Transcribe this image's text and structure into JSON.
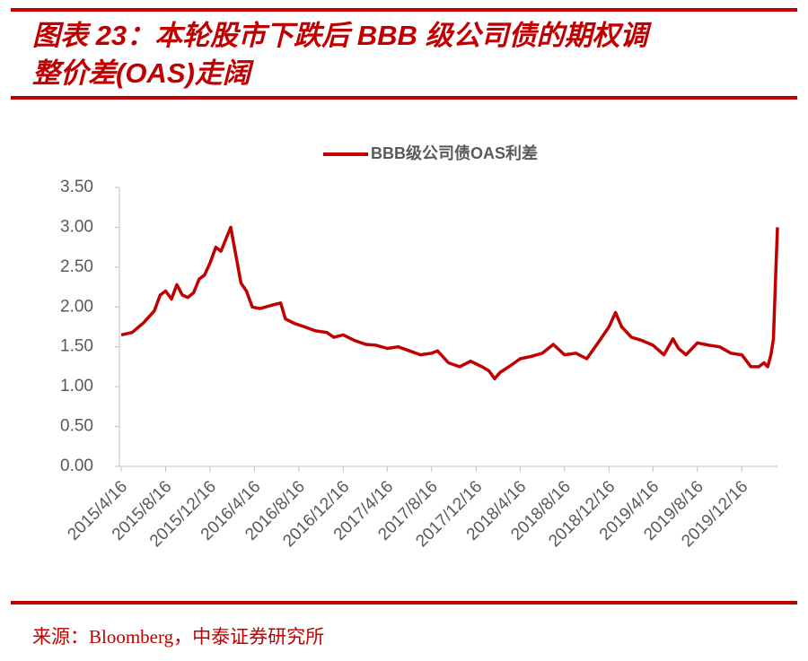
{
  "chart_data": {
    "type": "line",
    "title": [
      "图表 23：本轮股市下跌后 BBB 级公司债的期权调",
      "整价差(OAS)走阔"
    ],
    "source": "来源：Bloomberg，中泰证券研究所",
    "x": [
      "2015/4/16",
      "2015/5/16",
      "2015/6/16",
      "2015/7/16",
      "2015/8/1",
      "2015/8/16",
      "2015/9/1",
      "2015/9/16",
      "2015/10/1",
      "2015/10/16",
      "2015/11/1",
      "2015/11/16",
      "2015/12/1",
      "2015/12/16",
      "2016/1/1",
      "2016/1/15",
      "2016/2/11",
      "2016/2/25",
      "2016/3/10",
      "2016/3/25",
      "2016/4/10",
      "2016/5/1",
      "2016/6/1",
      "2016/6/27",
      "2016/7/10",
      "2016/8/1",
      "2016/9/1",
      "2016/10/1",
      "2016/11/1",
      "2016/11/20",
      "2016/12/16",
      "2017/1/16",
      "2017/2/16",
      "2017/3/16",
      "2017/4/16",
      "2017/5/16",
      "2017/6/16",
      "2017/7/16",
      "2017/8/16",
      "2017/9/1",
      "2017/10/1",
      "2017/11/1",
      "2017/12/1",
      "2018/1/1",
      "2018/1/20",
      "2018/2/5",
      "2018/2/20",
      "2018/3/16",
      "2018/4/16",
      "2018/5/16",
      "2018/6/16",
      "2018/7/16",
      "2018/8/16",
      "2018/9/16",
      "2018/10/16",
      "2018/11/16",
      "2018/12/16",
      "2019/1/3",
      "2019/1/20",
      "2019/2/16",
      "2019/3/16",
      "2019/4/16",
      "2019/5/16",
      "2019/6/10",
      "2019/6/25",
      "2019/7/16",
      "2019/8/16",
      "2019/9/16",
      "2019/10/16",
      "2019/11/16",
      "2019/12/16",
      "2020/1/10",
      "2020/2/1",
      "2020/2/15",
      "2020/2/25",
      "2020/3/5",
      "2020/3/12",
      "2020/3/18",
      "2020/3/23"
    ],
    "series": [
      {
        "name": "BBB级公司债OAS利差",
        "color": "#c00000",
        "values": [
          1.65,
          1.68,
          1.8,
          1.95,
          2.15,
          2.2,
          2.1,
          2.28,
          2.15,
          2.12,
          2.18,
          2.35,
          2.4,
          2.55,
          2.75,
          2.7,
          3.0,
          2.65,
          2.3,
          2.2,
          2.0,
          1.98,
          2.02,
          2.05,
          1.85,
          1.8,
          1.75,
          1.7,
          1.68,
          1.62,
          1.65,
          1.58,
          1.53,
          1.52,
          1.48,
          1.5,
          1.45,
          1.4,
          1.42,
          1.45,
          1.3,
          1.25,
          1.32,
          1.25,
          1.2,
          1.1,
          1.18,
          1.25,
          1.35,
          1.38,
          1.42,
          1.53,
          1.4,
          1.42,
          1.35,
          1.55,
          1.75,
          1.93,
          1.75,
          1.62,
          1.58,
          1.52,
          1.4,
          1.6,
          1.48,
          1.4,
          1.55,
          1.52,
          1.5,
          1.42,
          1.4,
          1.25,
          1.25,
          1.3,
          1.25,
          1.4,
          1.6,
          2.4,
          3.0
        ]
      }
    ],
    "xlim": [
      "2015/4/16",
      "2020/3/23"
    ],
    "xticks": [
      "2015/4/16",
      "2015/8/16",
      "2015/12/16",
      "2016/4/16",
      "2016/8/16",
      "2016/12/16",
      "2017/4/16",
      "2017/8/16",
      "2017/12/16",
      "2018/4/16",
      "2018/8/16",
      "2018/12/16",
      "2019/4/16",
      "2019/8/16",
      "2019/12/16"
    ],
    "ylim": [
      0,
      3.5
    ],
    "yticks": [
      {
        "value": 0,
        "label": "0.00"
      },
      {
        "value": 0.5,
        "label": "0.50"
      },
      {
        "value": 1,
        "label": "1.00"
      },
      {
        "value": 1.5,
        "label": "1.50"
      },
      {
        "value": 2,
        "label": "2.00"
      },
      {
        "value": 2.5,
        "label": "2.50"
      },
      {
        "value": 3,
        "label": "3.00"
      },
      {
        "value": 3.5,
        "label": "3.50"
      }
    ],
    "legend": "top"
  }
}
